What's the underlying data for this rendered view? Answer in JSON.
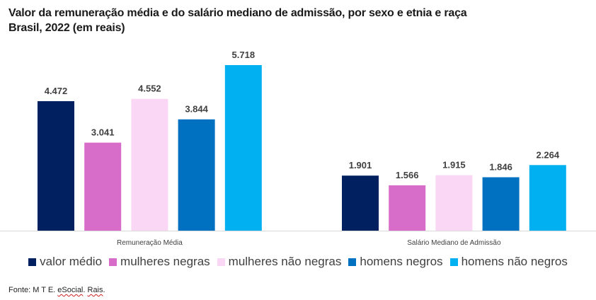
{
  "chart_data": {
    "type": "bar",
    "title": "Valor da remuneração média e do salário mediano de admissão, por sexo e etnia e raça",
    "subtitle": "Brasil, 2022 (em reais)",
    "categories": [
      "Remuneração Média",
      "Salário Mediano de Admissão"
    ],
    "series": [
      {
        "name": "valor médio",
        "color": "#002060",
        "values": [
          4472,
          1901
        ],
        "labels": [
          "4.472",
          "1.901"
        ]
      },
      {
        "name": "mulheres negras",
        "color": "#D76DC8",
        "values": [
          3041,
          1566
        ],
        "labels": [
          "3.041",
          "1.566"
        ]
      },
      {
        "name": "mulheres não negras",
        "color": "#F9D7F5",
        "values": [
          4552,
          1915
        ],
        "labels": [
          "4.552",
          "1.915"
        ]
      },
      {
        "name": "homens negros",
        "color": "#0070C0",
        "values": [
          3844,
          1846
        ],
        "labels": [
          "3.844",
          "1.846"
        ]
      },
      {
        "name": "homens não negros",
        "color": "#00B0F0",
        "values": [
          5718,
          2264
        ],
        "labels": [
          "5.718",
          "2.264"
        ]
      }
    ],
    "xlabel": "",
    "ylabel": "",
    "ylim": [
      0,
      5718
    ],
    "grid": false,
    "legend_position": "bottom"
  },
  "source": {
    "prefix": "Fonte: M T E. ",
    "part1": "eSocial",
    "sep": ". ",
    "part2": "Rais",
    "suffix": "."
  }
}
